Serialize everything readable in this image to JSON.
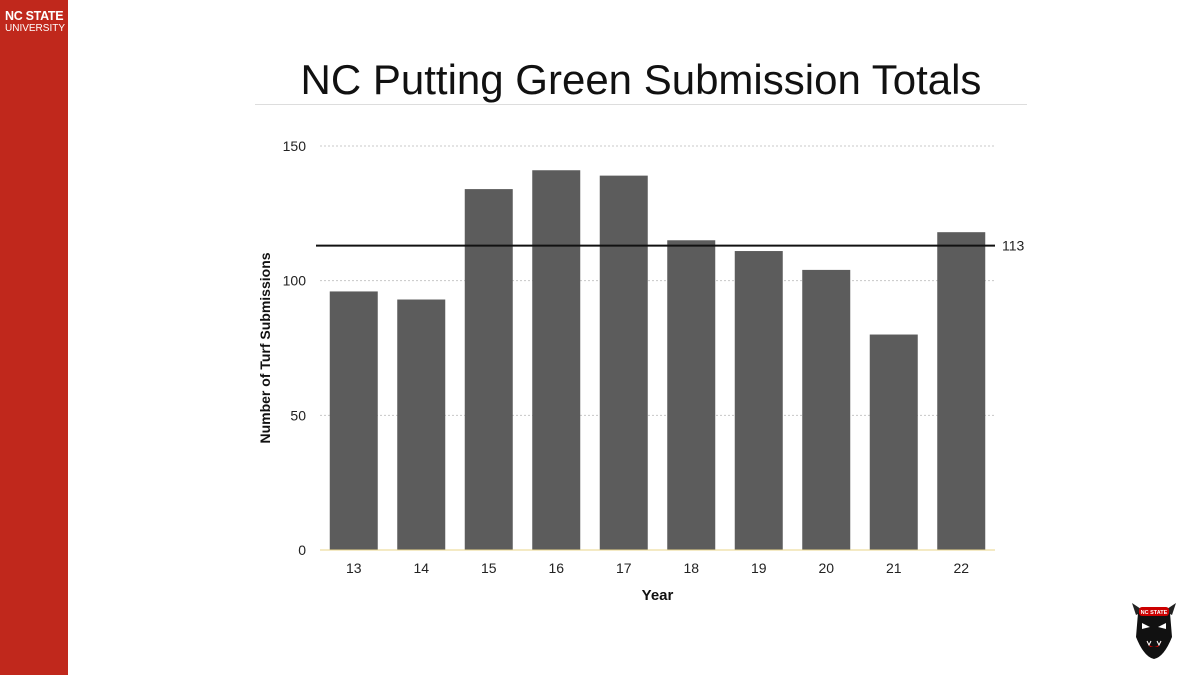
{
  "branding": {
    "line1": "NC STATE",
    "line2": "UNIVERSITY",
    "accent": "#c0281c",
    "mascot_badge": "NC STATE"
  },
  "chart_data": {
    "type": "bar",
    "title": "NC Putting Green Submission Totals",
    "xlabel": "Year",
    "ylabel": "Number of Turf Submissions",
    "categories": [
      "13",
      "14",
      "15",
      "16",
      "17",
      "18",
      "19",
      "20",
      "21",
      "22"
    ],
    "values": [
      96,
      93,
      134,
      141,
      139,
      115,
      111,
      104,
      80,
      118
    ],
    "ylim": [
      0,
      150
    ],
    "yticks": [
      0,
      50,
      100,
      150
    ],
    "ytick_labels": [
      "0",
      "50",
      "100",
      "150"
    ],
    "grid": true,
    "reference_line": {
      "value": 113,
      "label": "113"
    },
    "bar_color": "#5c5c5c"
  }
}
